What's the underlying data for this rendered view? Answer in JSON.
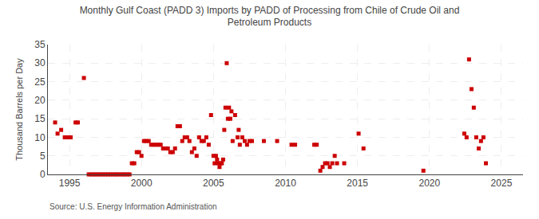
{
  "chart_data": {
    "type": "scatter",
    "title": "Monthly Gulf Coast (PADD 3) Imports by PADD of Processing from Chile of Crude Oil and\nPetroleum Products",
    "y_label": "Thousand Barrels per Day",
    "annotations": [
      "Source: U.S. Energy Information Administration"
    ],
    "color": "#cc0000",
    "marker": "square",
    "grid": true,
    "xlim": [
      1993.5,
      2026.5
    ],
    "xticks": [
      1995,
      2000,
      2005,
      2010,
      2015,
      2020,
      2025
    ],
    "ylim": [
      0,
      35
    ],
    "yticks": [
      0,
      5,
      10,
      15,
      20,
      25,
      30,
      35
    ],
    "x": [
      1994.0,
      1994.17,
      1994.42,
      1994.67,
      1994.92,
      1995.08,
      1995.42,
      1995.58,
      1996.0,
      1996.33,
      1996.5,
      1996.67,
      1996.83,
      1997.0,
      1997.17,
      1997.33,
      1997.5,
      1997.67,
      1997.83,
      1998.0,
      1998.17,
      1998.33,
      1998.5,
      1998.67,
      1998.83,
      1999.0,
      1999.17,
      1999.33,
      1999.5,
      1999.67,
      1999.83,
      2000.0,
      2000.17,
      2000.33,
      2000.5,
      2000.67,
      2000.83,
      2001.0,
      2001.17,
      2001.33,
      2001.5,
      2001.67,
      2001.83,
      2002.0,
      2002.17,
      2002.33,
      2002.5,
      2002.67,
      2002.83,
      2003.0,
      2003.17,
      2003.33,
      2003.5,
      2003.67,
      2003.83,
      2004.0,
      2004.17,
      2004.33,
      2004.5,
      2004.67,
      2004.83,
      2005.0,
      2005.08,
      2005.17,
      2005.25,
      2005.33,
      2005.42,
      2005.5,
      2005.58,
      2005.67,
      2005.75,
      2005.83,
      2005.92,
      2006.0,
      2006.08,
      2006.17,
      2006.25,
      2006.33,
      2006.5,
      2006.67,
      2006.75,
      2006.83,
      2007.0,
      2007.17,
      2007.33,
      2007.5,
      2007.67,
      2008.5,
      2009.42,
      2010.42,
      2010.67,
      2012.0,
      2012.17,
      2012.42,
      2012.58,
      2012.75,
      2012.92,
      2013.08,
      2013.25,
      2013.42,
      2013.58,
      2014.08,
      2015.08,
      2015.42,
      2019.58,
      2022.42,
      2022.58,
      2022.75,
      2022.92,
      2023.08,
      2023.25,
      2023.42,
      2023.58,
      2023.75,
      2023.92
    ],
    "values": [
      14,
      11,
      12,
      10,
      10,
      10,
      14,
      14,
      26,
      0,
      0,
      0,
      0,
      0,
      0,
      0,
      0,
      0,
      0,
      0,
      0,
      0,
      0,
      0,
      0,
      0,
      0,
      3,
      3,
      6,
      6,
      5,
      9,
      9,
      9,
      8,
      8,
      8,
      8,
      8,
      7,
      7,
      7,
      6,
      6,
      7,
      13,
      13,
      9,
      10,
      10,
      9,
      6,
      7,
      5,
      10,
      9,
      9,
      10,
      8,
      16,
      5,
      3,
      5,
      4,
      3,
      2,
      3,
      3,
      4,
      12,
      18,
      30,
      15,
      18,
      15,
      17,
      9,
      16,
      10,
      12,
      8,
      10,
      9,
      8,
      9,
      9,
      9,
      9,
      8,
      8,
      8,
      8,
      1,
      2,
      3,
      3,
      2,
      3,
      5,
      3,
      3,
      11,
      7,
      1,
      11,
      10,
      31,
      23,
      18,
      10,
      7,
      9,
      10,
      3
    ]
  }
}
